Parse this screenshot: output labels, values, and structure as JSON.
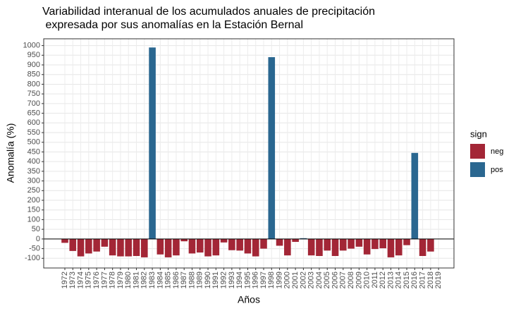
{
  "chart_data": {
    "type": "bar",
    "title": [
      "Variabilidad interanual de los acumulados anuales de precipitación",
      " expresada por sus anomalías en la Estación Bernal"
    ],
    "x_label": "Años",
    "y_label": "Anomalía (%)",
    "categories": [
      "1972",
      "1973",
      "1974",
      "1975",
      "1976",
      "1977",
      "1978",
      "1979",
      "1980",
      "1981",
      "1982",
      "1983",
      "1984",
      "1985",
      "1986",
      "1987",
      "1988",
      "1989",
      "1990",
      "1991",
      "1992",
      "1993",
      "1994",
      "1995",
      "1996",
      "1997",
      "1998",
      "1999",
      "2000",
      "2001",
      "2002",
      "2003",
      "2004",
      "2005",
      "2006",
      "2007",
      "2008",
      "2009",
      "2010",
      "2011",
      "2012",
      "2013",
      "2014",
      "2015",
      "2016",
      "2017",
      "2018",
      "2019"
    ],
    "legend_title": "sign",
    "series": [
      {
        "name": "neg",
        "color": "#a32636",
        "values": [
          -20,
          -62,
          -90,
          -75,
          -65,
          -40,
          -85,
          -90,
          -90,
          -88,
          -95,
          null,
          -80,
          -95,
          -85,
          -12,
          -75,
          -70,
          -90,
          -85,
          -18,
          -58,
          -60,
          -75,
          -90,
          -50,
          null,
          -35,
          -85,
          -15,
          null,
          -85,
          -88,
          -60,
          -88,
          -60,
          -50,
          -40,
          -80,
          -52,
          -48,
          -95,
          -85,
          -32,
          null,
          -88,
          -65,
          null
        ]
      },
      {
        "name": "pos",
        "color": "#2a6790",
        "values": [
          null,
          null,
          null,
          null,
          null,
          null,
          null,
          null,
          null,
          null,
          null,
          990,
          null,
          null,
          null,
          null,
          null,
          null,
          null,
          null,
          null,
          null,
          null,
          null,
          null,
          null,
          940,
          null,
          null,
          null,
          4,
          null,
          null,
          null,
          null,
          null,
          null,
          null,
          null,
          null,
          null,
          null,
          null,
          null,
          445,
          null,
          null,
          null
        ]
      }
    ],
    "ylim": [
      -150,
      1035
    ],
    "yticks": [
      -100,
      -50,
      0,
      50,
      100,
      150,
      200,
      250,
      300,
      350,
      400,
      450,
      500,
      550,
      600,
      650,
      700,
      750,
      800,
      850,
      900,
      950,
      1000
    ],
    "grid": true,
    "legend": "right"
  }
}
